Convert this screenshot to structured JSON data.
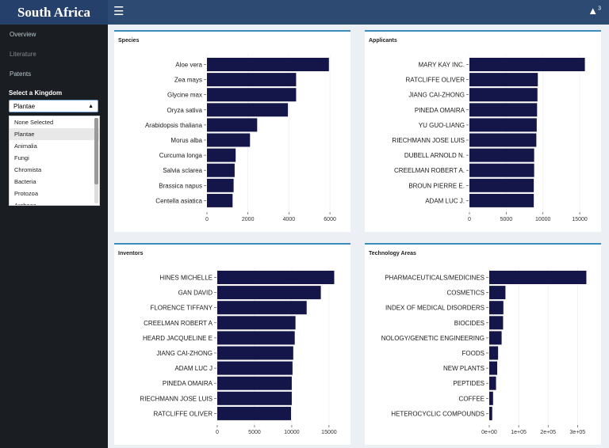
{
  "header": {
    "brand": "South Africa",
    "menu_icon": "hamburger-icon",
    "notif_icon": "bell-icon",
    "notif_count": "3"
  },
  "sidebar": {
    "items": [
      {
        "label": "Overview"
      },
      {
        "label": "Literature"
      },
      {
        "label": "Patents"
      }
    ],
    "kingdom_label": "Select a Kingdom",
    "kingdom_selected": "Plantae",
    "kingdom_options": [
      "None Selected",
      "Plantae",
      "Animalia",
      "Fungi",
      "Chromista",
      "Bacteria",
      "Protozoa",
      "Archaea"
    ]
  },
  "colors": {
    "bar": "#14164a",
    "accent": "#3c8dbc",
    "topbar": "#2c4a72",
    "sidebar": "#1a1d21"
  },
  "chart_data": [
    {
      "type": "bar",
      "title": "Species",
      "orientation": "horizontal",
      "categories": [
        "Aloe vera",
        "Zea mays",
        "Glycine max",
        "Oryza sativa",
        "Arabidopsis thaliana",
        "Morus alba",
        "Curcuma longa",
        "Salvia sclarea",
        "Brassica napus",
        "Centella asiatica"
      ],
      "values": [
        5950,
        4350,
        4350,
        3950,
        2450,
        2100,
        1400,
        1350,
        1300,
        1250
      ],
      "xlim": [
        0,
        6500
      ],
      "xticks": [
        0,
        2000,
        4000,
        6000
      ],
      "xtick_labels": [
        "0",
        "2000",
        "4000",
        "6000"
      ]
    },
    {
      "type": "bar",
      "title": "Applicants",
      "orientation": "horizontal",
      "categories": [
        "MARY KAY INC.",
        "RATCLIFFE OLIVER",
        "JIANG CAI-ZHONG",
        "PINEDA OMAIRA",
        "YU GUO-LIANG",
        "RIECHMANN JOSE LUIS",
        "DUBELL ARNOLD N.",
        "CREELMAN ROBERT A.",
        "BROUN PIERRE E.",
        "ADAM LUC J."
      ],
      "values": [
        15700,
        9300,
        9250,
        9200,
        9150,
        9100,
        8800,
        8800,
        8750,
        8750
      ],
      "xlim": [
        0,
        16500
      ],
      "xticks": [
        0,
        5000,
        10000,
        15000
      ],
      "xtick_labels": [
        "0",
        "5000",
        "10000",
        "15000"
      ]
    },
    {
      "type": "bar",
      "title": "Inventors",
      "orientation": "horizontal",
      "categories": [
        "HINES MICHELLE",
        "GAN DAVID",
        "FLORENCE TIFFANY",
        "CREELMAN ROBERT A",
        "HEARD JACQUELINE E",
        "JIANG CAI-ZHONG",
        "ADAM LUC J",
        "PINEDA OMAIRA",
        "RIECHMANN JOSE LUIS",
        "RATCLIFFE OLIVER"
      ],
      "values": [
        15700,
        13900,
        12000,
        10500,
        10400,
        10200,
        10100,
        10000,
        10000,
        9900
      ],
      "xlim": [
        0,
        16500
      ],
      "xticks": [
        0,
        5000,
        10000,
        15000
      ],
      "xtick_labels": [
        "0",
        "5000",
        "10000",
        "15000"
      ]
    },
    {
      "type": "bar",
      "title": "Technology Areas",
      "orientation": "horizontal",
      "categories": [
        "PHARMACEUTICALS/MEDICINES",
        "COSMETICS",
        "INDEX OF MEDICAL DISORDERS",
        "BIOCIDES",
        "NOLOGY/GENETIC ENGINEERING",
        "FOODS",
        "NEW PLANTS",
        "PEPTIDES",
        "COFFEE",
        "HETEROCYCLIC COMPOUNDS"
      ],
      "values": [
        330000,
        55000,
        48000,
        47000,
        42000,
        30000,
        27000,
        23000,
        13000,
        10000
      ],
      "xlim": [
        0,
        345000
      ],
      "xticks": [
        0,
        100000,
        200000,
        300000
      ],
      "xtick_labels": [
        "0e+00",
        "1e+05",
        "2e+05",
        "3e+05"
      ]
    }
  ]
}
